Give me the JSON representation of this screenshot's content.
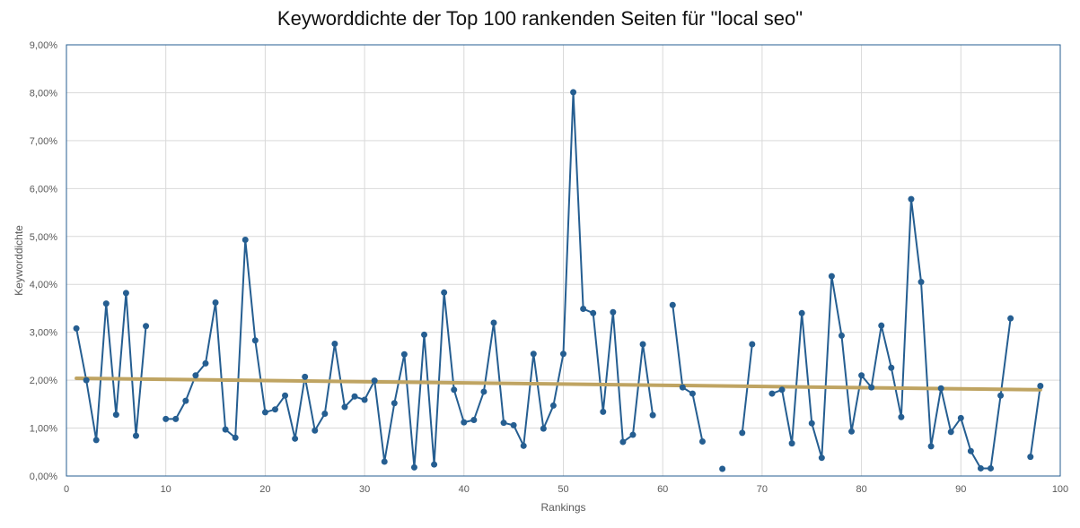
{
  "chart_data": {
    "type": "line",
    "title": "Keyworddichte der Top 100 rankenden Seiten für \"local seo\"",
    "xlabel": "Rankings",
    "ylabel": "Keyworddichte",
    "xlim": [
      0,
      100
    ],
    "ylim": [
      0,
      9
    ],
    "x_ticks": [
      0,
      10,
      20,
      30,
      40,
      50,
      60,
      70,
      80,
      90,
      100
    ],
    "y_ticks": [
      "0,00%",
      "1,00%",
      "2,00%",
      "3,00%",
      "4,00%",
      "5,00%",
      "6,00%",
      "7,00%",
      "8,00%",
      "9,00%"
    ],
    "grid": true,
    "series": [
      {
        "unit": "%",
        "color": "#255E91",
        "x": [
          1,
          2,
          3,
          4,
          5,
          6,
          7,
          8,
          9,
          10,
          11,
          12,
          13,
          14,
          15,
          16,
          17,
          18,
          19,
          20,
          21,
          22,
          23,
          24,
          25,
          26,
          27,
          28,
          29,
          30,
          31,
          32,
          33,
          34,
          35,
          36,
          37,
          38,
          39,
          40,
          41,
          42,
          43,
          44,
          45,
          46,
          47,
          48,
          49,
          50,
          51,
          52,
          53,
          54,
          55,
          56,
          57,
          58,
          59,
          60,
          61,
          62,
          63,
          64,
          65,
          66,
          67,
          68,
          69,
          70,
          71,
          72,
          73,
          74,
          75,
          76,
          77,
          78,
          79,
          80,
          81,
          82,
          83,
          84,
          85,
          86,
          87,
          88,
          89,
          90,
          91,
          92,
          93,
          94,
          95,
          96,
          97,
          98
        ],
        "values": [
          3.08,
          2.0,
          0.75,
          3.6,
          1.28,
          3.82,
          0.84,
          3.13,
          null,
          1.19,
          1.19,
          1.57,
          2.1,
          2.35,
          3.62,
          0.97,
          0.8,
          4.93,
          2.83,
          1.33,
          1.39,
          1.68,
          0.78,
          2.07,
          0.95,
          1.3,
          2.76,
          1.44,
          1.66,
          1.59,
          1.99,
          0.3,
          1.52,
          2.54,
          0.18,
          2.95,
          0.24,
          3.83,
          1.8,
          1.12,
          1.17,
          1.76,
          3.2,
          1.11,
          1.06,
          0.63,
          2.55,
          0.99,
          1.47,
          2.55,
          8.01,
          3.49,
          3.4,
          1.34,
          3.42,
          0.71,
          0.86,
          2.75,
          1.27,
          null,
          3.57,
          1.85,
          1.72,
          0.72,
          null,
          0.15,
          null,
          0.9,
          2.75,
          null,
          1.72,
          1.8,
          0.68,
          3.4,
          1.1,
          0.38,
          4.17,
          2.93,
          0.93,
          2.1,
          1.85,
          3.14,
          2.26,
          1.23,
          5.78,
          4.05,
          0.62,
          1.83,
          0.92,
          1.21,
          0.52,
          0.16,
          0.16,
          1.68,
          3.29,
          null,
          0.4,
          1.88
        ]
      },
      {
        "type": "linear-trend",
        "color": "#BFA462",
        "x": [
          1,
          98
        ],
        "values": [
          2.04,
          1.8
        ]
      }
    ]
  }
}
